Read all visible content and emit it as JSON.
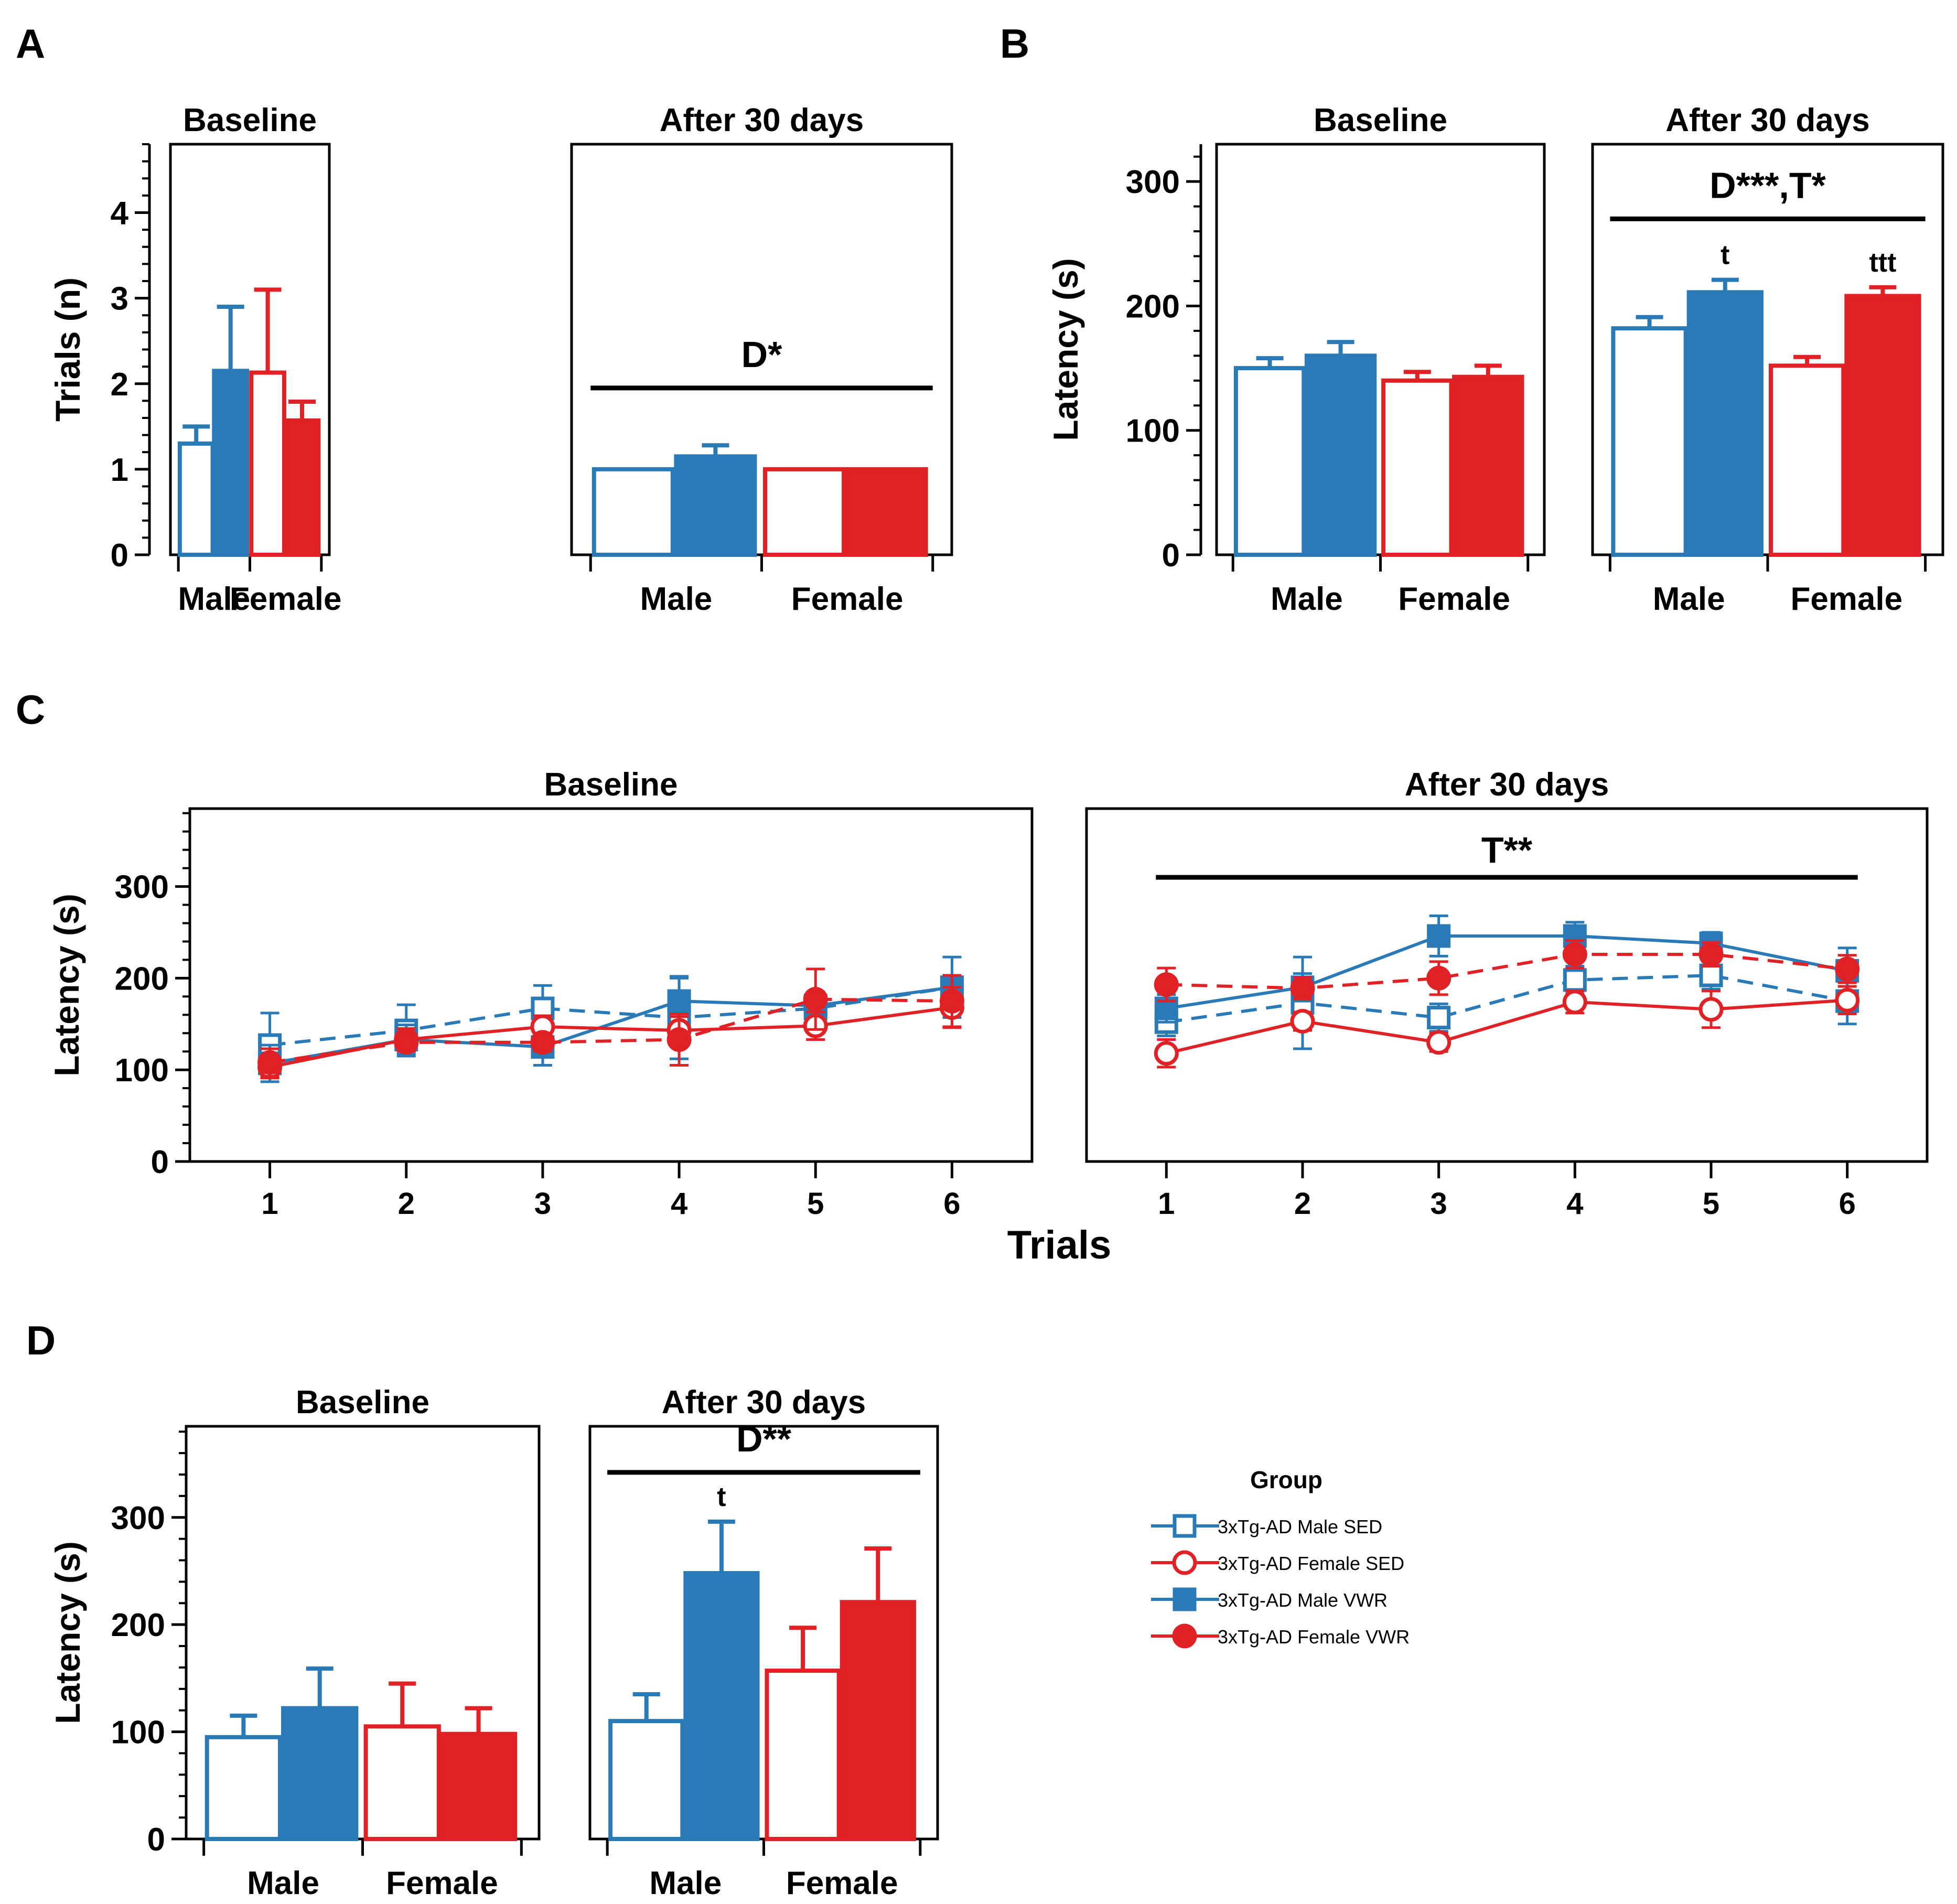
{
  "colors": {
    "male": "#2a7ab8",
    "female": "#e02125",
    "axis": "#000000"
  },
  "legend": {
    "title": "Group",
    "entries": [
      {
        "label": "3xTg-AD Male SED",
        "sex": "male",
        "fill": "open",
        "marker": "square",
        "dash": true
      },
      {
        "label": "3xTg-AD Female SED",
        "sex": "female",
        "fill": "open",
        "marker": "circle",
        "dash": false
      },
      {
        "label": "3xTg-AD Male VWR",
        "sex": "male",
        "fill": "filled",
        "marker": "square",
        "dash": false
      },
      {
        "label": "3xTg-AD Female VWR",
        "sex": "female",
        "fill": "filled",
        "marker": "circle",
        "dash": true
      }
    ]
  },
  "chart_data": [
    {
      "panel": "A",
      "type": "bar",
      "ylabel": "Trials (n)",
      "ylim": [
        0,
        4.8
      ],
      "yticks": [
        0,
        1,
        2,
        3,
        4
      ],
      "minor_step": 0.2,
      "groups": [
        "Male",
        "Female"
      ],
      "subplots": [
        {
          "title": "Baseline",
          "annotation": null,
          "bars": [
            {
              "group": "Male",
              "series": "SED",
              "value": 1.3,
              "err": 0.2,
              "mark": ""
            },
            {
              "group": "Male",
              "series": "VWR",
              "value": 2.15,
              "err": 0.75,
              "mark": ""
            },
            {
              "group": "Female",
              "series": "SED",
              "value": 2.13,
              "err": 0.97,
              "mark": ""
            },
            {
              "group": "Female",
              "series": "VWR",
              "value": 1.57,
              "err": 0.22,
              "mark": ""
            }
          ]
        },
        {
          "title": "After 30 days",
          "annotation": "D*",
          "bars": [
            {
              "group": "Male",
              "series": "SED",
              "value": 1.0,
              "err": 0,
              "mark": ""
            },
            {
              "group": "Male",
              "series": "VWR",
              "value": 1.15,
              "err": 0.13,
              "mark": ""
            },
            {
              "group": "Female",
              "series": "SED",
              "value": 1.0,
              "err": 0,
              "mark": ""
            },
            {
              "group": "Female",
              "series": "VWR",
              "value": 1.0,
              "err": 0,
              "mark": ""
            }
          ]
        }
      ]
    },
    {
      "panel": "B",
      "type": "bar",
      "ylabel": "Latency (s)",
      "ylim": [
        0,
        330
      ],
      "yticks": [
        0,
        100,
        200,
        300
      ],
      "minor_step": 20,
      "groups": [
        "Male",
        "Female"
      ],
      "subplots": [
        {
          "title": "Baseline",
          "annotation": null,
          "bars": [
            {
              "group": "Male",
              "series": "SED",
              "value": 150,
              "err": 8,
              "mark": ""
            },
            {
              "group": "Male",
              "series": "VWR",
              "value": 160,
              "err": 11,
              "mark": ""
            },
            {
              "group": "Female",
              "series": "SED",
              "value": 140,
              "err": 7,
              "mark": ""
            },
            {
              "group": "Female",
              "series": "VWR",
              "value": 143,
              "err": 9,
              "mark": ""
            }
          ]
        },
        {
          "title": "After 30 days",
          "annotation": "D***,T*",
          "bars": [
            {
              "group": "Male",
              "series": "SED",
              "value": 182,
              "err": 9,
              "mark": ""
            },
            {
              "group": "Male",
              "series": "VWR",
              "value": 211,
              "err": 10,
              "mark": "t"
            },
            {
              "group": "Female",
              "series": "SED",
              "value": 152,
              "err": 7,
              "mark": ""
            },
            {
              "group": "Female",
              "series": "VWR",
              "value": 208,
              "err": 7,
              "mark": "ttt"
            }
          ]
        }
      ]
    },
    {
      "panel": "C",
      "type": "line",
      "xlabel": "Trials",
      "ylabel": "Latency (s)",
      "ylim": [
        0,
        385
      ],
      "yticks": [
        0,
        100,
        200,
        300
      ],
      "minor_step": 20,
      "x": [
        1,
        2,
        3,
        4,
        5,
        6
      ],
      "subplots": [
        {
          "title": "Baseline",
          "annotation": null,
          "series": [
            {
              "name": "3xTg-AD Male SED",
              "values": [
                127,
                143,
                167,
                157,
                167,
                190
              ],
              "err": [
                35,
                28,
                25,
                45,
                13,
                33
              ]
            },
            {
              "name": "3xTg-AD Male VWR",
              "values": [
                107,
                133,
                125,
                175,
                170,
                190
              ],
              "err": [
                20,
                16,
                20,
                25,
                15,
                13
              ]
            },
            {
              "name": "3xTg-AD Female SED",
              "values": [
                103,
                133,
                147,
                143,
                148,
                168
              ],
              "err": [
                12,
                12,
                12,
                15,
                15,
                22
              ]
            },
            {
              "name": "3xTg-AD Female VWR",
              "values": [
                108,
                130,
                130,
                133,
                177,
                175
              ],
              "err": [
                15,
                10,
                10,
                28,
                33,
                28
              ]
            }
          ]
        },
        {
          "title": "After 30 days",
          "annotation": "T**",
          "series": [
            {
              "name": "3xTg-AD Male SED",
              "values": [
                152,
                173,
                157,
                198,
                203,
                175
              ],
              "err": [
                15,
                50,
                15,
                15,
                15,
                25
              ]
            },
            {
              "name": "3xTg-AD Male VWR",
              "values": [
                167,
                190,
                246,
                246,
                238,
                208
              ],
              "err": [
                15,
                15,
                22,
                15,
                12,
                25
              ]
            },
            {
              "name": "3xTg-AD Female SED",
              "values": [
                118,
                153,
                130,
                174,
                166,
                176
              ],
              "err": [
                15,
                10,
                10,
                12,
                20,
                15
              ]
            },
            {
              "name": "3xTg-AD Female VWR",
              "values": [
                193,
                189,
                200,
                226,
                226,
                210
              ],
              "err": [
                18,
                12,
                18,
                15,
                13,
                15
              ]
            }
          ]
        }
      ]
    },
    {
      "panel": "D",
      "type": "bar",
      "ylabel": "Latency (s)",
      "ylim": [
        0,
        385
      ],
      "yticks": [
        0,
        100,
        200,
        300
      ],
      "minor_step": 20,
      "groups": [
        "Male",
        "Female"
      ],
      "subplots": [
        {
          "title": "Baseline",
          "annotation": null,
          "bars": [
            {
              "group": "Male",
              "series": "SED",
              "value": 95,
              "err": 20,
              "mark": ""
            },
            {
              "group": "Male",
              "series": "VWR",
              "value": 122,
              "err": 37,
              "mark": ""
            },
            {
              "group": "Female",
              "series": "SED",
              "value": 105,
              "err": 40,
              "mark": ""
            },
            {
              "group": "Female",
              "series": "VWR",
              "value": 98,
              "err": 24,
              "mark": ""
            }
          ]
        },
        {
          "title": "After 30 days",
          "annotation": "D**",
          "bars": [
            {
              "group": "Male",
              "series": "SED",
              "value": 110,
              "err": 25,
              "mark": ""
            },
            {
              "group": "Male",
              "series": "VWR",
              "value": 248,
              "err": 48,
              "mark": "t"
            },
            {
              "group": "Female",
              "series": "SED",
              "value": 157,
              "err": 40,
              "mark": ""
            },
            {
              "group": "Female",
              "series": "VWR",
              "value": 221,
              "err": 50,
              "mark": ""
            }
          ]
        }
      ]
    }
  ]
}
